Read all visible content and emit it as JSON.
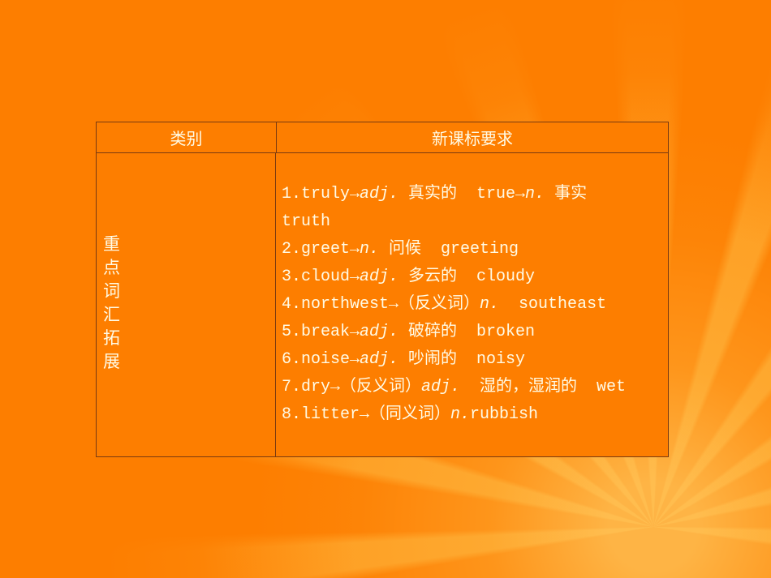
{
  "theme": {
    "background_color": "#fd7e00",
    "ray_highlight_color": "#ffba40",
    "table_border_color": "#7a3a10",
    "text_color": "#fffbe6"
  },
  "table": {
    "header": {
      "category_label": "类别",
      "requirement_label": "新课标要求"
    },
    "category": {
      "text": "重点词汇拓展",
      "chars": [
        "重",
        "点",
        "词",
        "汇",
        "拓",
        "展"
      ]
    },
    "vocab_lines": [
      {
        "segments": [
          {
            "text": "1.truly→"
          },
          {
            "text": "adj.",
            "italic": true
          },
          {
            "text": " 真实的  true→"
          },
          {
            "text": "n.",
            "italic": true
          },
          {
            "text": " 事实"
          }
        ]
      },
      {
        "segments": [
          {
            "text": "truth"
          }
        ]
      },
      {
        "segments": [
          {
            "text": "2.greet→"
          },
          {
            "text": "n.",
            "italic": true
          },
          {
            "text": " 问候  greeting"
          }
        ]
      },
      {
        "segments": [
          {
            "text": "3.cloud→"
          },
          {
            "text": "adj.",
            "italic": true
          },
          {
            "text": " 多云的  cloudy"
          }
        ]
      },
      {
        "segments": [
          {
            "text": "4.northwest→（反义词）"
          },
          {
            "text": "n.",
            "italic": true
          },
          {
            "text": "  southeast"
          }
        ]
      },
      {
        "segments": [
          {
            "text": "5.break→"
          },
          {
            "text": "adj.",
            "italic": true
          },
          {
            "text": " 破碎的  broken"
          }
        ]
      },
      {
        "segments": [
          {
            "text": "6.noise→"
          },
          {
            "text": "adj.",
            "italic": true
          },
          {
            "text": " 吵闹的  noisy"
          }
        ]
      },
      {
        "segments": [
          {
            "text": "7.dry→（反义词）"
          },
          {
            "text": "adj.",
            "italic": true
          },
          {
            "text": "  湿的，湿润的  wet"
          }
        ]
      },
      {
        "segments": [
          {
            "text": "8.litter→（同义词）"
          },
          {
            "text": "n.",
            "italic": true
          },
          {
            "text": "rubbish"
          }
        ]
      }
    ]
  }
}
